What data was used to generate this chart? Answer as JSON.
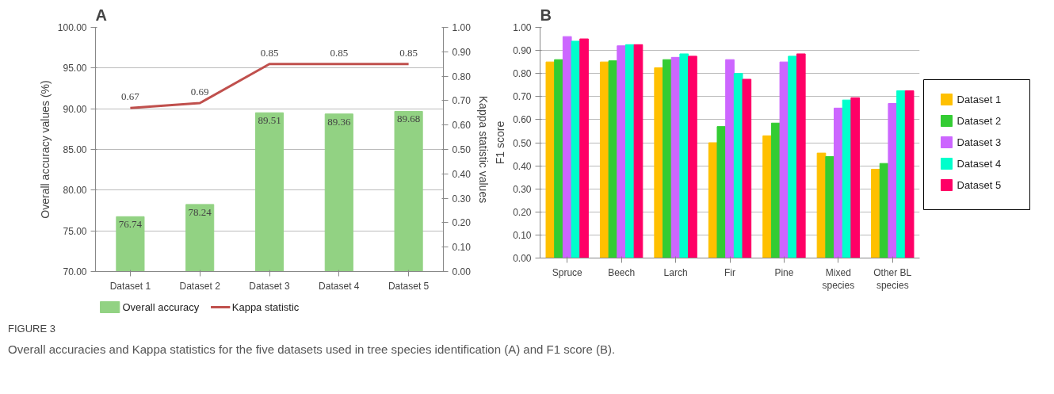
{
  "chart_data": [
    {
      "type": "bar",
      "title": "A",
      "ylabel": "Overall accuracy values (%)",
      "y2label": "Kappa statistic values",
      "categories": [
        "Dataset 1",
        "Dataset 2",
        "Dataset 3",
        "Dataset 4",
        "Dataset 5"
      ],
      "series": [
        {
          "name": "Overall accuracy",
          "type": "bar",
          "color": "#92d283",
          "values": [
            76.74,
            78.24,
            89.51,
            89.36,
            89.68
          ]
        },
        {
          "name": "Kappa statistic",
          "type": "line",
          "axis": "y2",
          "color": "#c0504d",
          "values": [
            0.67,
            0.69,
            0.85,
            0.85,
            0.85
          ]
        }
      ],
      "ylim": [
        70,
        100
      ],
      "yticks": [
        {
          "value": 70,
          "label": "70.00"
        },
        {
          "value": 75,
          "label": "75.00"
        },
        {
          "value": 80,
          "label": "80.00"
        },
        {
          "value": 85,
          "label": "85.00"
        },
        {
          "value": 90,
          "label": "90.00"
        },
        {
          "value": 95,
          "label": "95.00"
        },
        {
          "value": 100,
          "label": "100.00"
        }
      ],
      "y2lim": [
        0,
        1
      ],
      "y2ticks": [
        {
          "value": 0,
          "label": "0.00"
        },
        {
          "value": 0.1,
          "label": "0.10"
        },
        {
          "value": 0.2,
          "label": "0.20"
        },
        {
          "value": 0.3,
          "label": "0.30"
        },
        {
          "value": 0.4,
          "label": "0.40"
        },
        {
          "value": 0.5,
          "label": "0.50"
        },
        {
          "value": 0.6,
          "label": "0.60"
        },
        {
          "value": 0.7,
          "label": "0.70"
        },
        {
          "value": 0.8,
          "label": "0.80"
        },
        {
          "value": 0.9,
          "label": "0.90"
        },
        {
          "value": 1,
          "label": "1.00"
        }
      ],
      "data_labels": true,
      "grid": "y",
      "legend": "bottom",
      "marker": "none",
      "annotations": [
        "FIGURE 3",
        "Overall accuracies and Kappa statistics for the five datasets used in tree species identification (A) and F1 score (B)."
      ]
    },
    {
      "type": "bar",
      "title": "B",
      "ylabel": "F1 score",
      "categories": [
        "Spruce",
        "Beech",
        "Larch",
        "Fir",
        "Pine",
        "Mixed\nspecies",
        "Other BL\nspecies"
      ],
      "series": [
        {
          "name": "Dataset 1",
          "color": "#ffc000",
          "values": [
            0.85,
            0.85,
            0.825,
            0.5,
            0.53,
            0.455,
            0.385
          ]
        },
        {
          "name": "Dataset 2",
          "color": "#33cc33",
          "values": [
            0.86,
            0.855,
            0.86,
            0.57,
            0.585,
            0.44,
            0.41
          ]
        },
        {
          "name": "Dataset 3",
          "color": "#cc66ff",
          "values": [
            0.96,
            0.92,
            0.87,
            0.86,
            0.85,
            0.65,
            0.67
          ]
        },
        {
          "name": "Dataset 4",
          "color": "#00ffcc",
          "values": [
            0.94,
            0.925,
            0.885,
            0.8,
            0.875,
            0.685,
            0.725
          ]
        },
        {
          "name": "Dataset 5",
          "color": "#ff0066",
          "values": [
            0.95,
            0.925,
            0.875,
            0.775,
            0.885,
            0.695,
            0.725
          ]
        }
      ],
      "ylim": [
        0,
        1
      ],
      "yticks": [
        {
          "value": 0,
          "label": "0.00"
        },
        {
          "value": 0.1,
          "label": "0.10"
        },
        {
          "value": 0.2,
          "label": "0.20"
        },
        {
          "value": 0.3,
          "label": "0.30"
        },
        {
          "value": 0.4,
          "label": "0.40"
        },
        {
          "value": 0.5,
          "label": "0.50"
        },
        {
          "value": 0.6,
          "label": "0.60"
        },
        {
          "value": 0.7,
          "label": "0.70"
        },
        {
          "value": 0.8,
          "label": "0.80"
        },
        {
          "value": 0.9,
          "label": "0.90"
        },
        {
          "value": 1,
          "label": "1.00"
        }
      ],
      "grid": "y",
      "legend": "right"
    }
  ]
}
